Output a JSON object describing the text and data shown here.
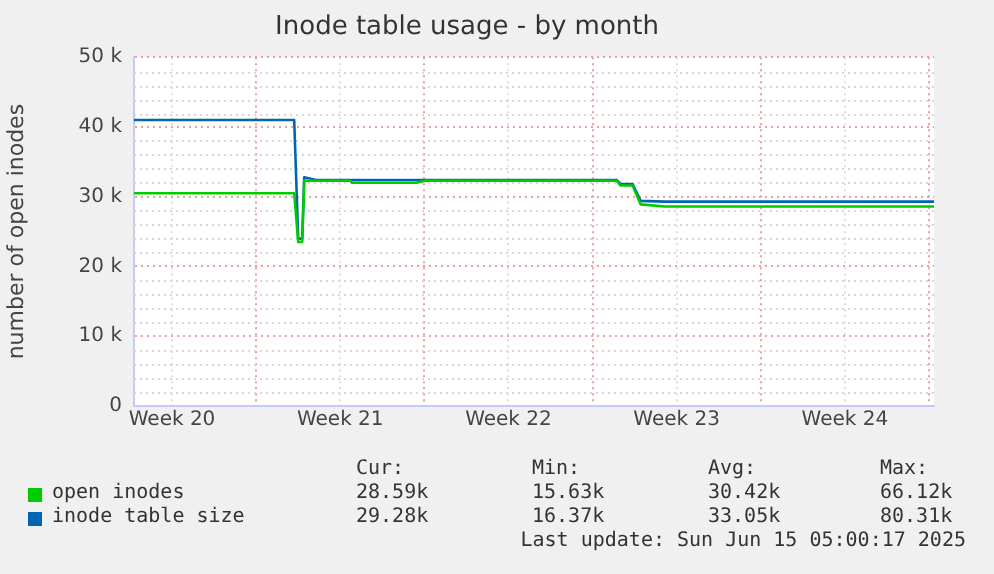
{
  "chart_data": {
    "type": "line",
    "title": "Inode table usage - by month",
    "ylabel": "number of open inodes",
    "series": [
      {
        "name": "open inodes",
        "color": "#00cc00",
        "x": [
          "2025-05-12T22:00",
          "2025-05-19T14:00",
          "2025-05-19T18:00",
          "2025-05-19T22:00",
          "2025-05-20T00:00",
          "2025-05-21T22:00",
          "2025-05-22T00:00",
          "2025-05-24T16:00",
          "2025-05-25T00:00",
          "2025-06-02T00:00",
          "2025-06-02T04:00",
          "2025-06-02T16:00",
          "2025-06-03T00:00",
          "2025-06-04T00:00",
          "2025-06-15T05:00"
        ],
        "values": [
          30500,
          30500,
          23500,
          23500,
          32300,
          32300,
          32000,
          32000,
          32300,
          32300,
          31600,
          31600,
          28900,
          28600,
          28600
        ]
      },
      {
        "name": "inode table size",
        "color": "#0066b3",
        "x": [
          "2025-05-12T22:00",
          "2025-05-19T14:00",
          "2025-05-19T18:00",
          "2025-05-19T22:00",
          "2025-05-20T00:00",
          "2025-05-20T12:00",
          "2025-06-02T00:00",
          "2025-06-02T04:00",
          "2025-06-02T16:00",
          "2025-06-03T00:00",
          "2025-06-04T00:00",
          "2025-06-15T05:00"
        ],
        "values": [
          41000,
          41000,
          24000,
          24000,
          32800,
          32400,
          32400,
          31800,
          31800,
          29400,
          29300,
          29300
        ]
      }
    ],
    "xlim": [
      "2025-05-12T22:00",
      "2025-06-15T05:00"
    ],
    "xticks": [
      {
        "value": "2025-05-14T12:00",
        "label": "Week 20"
      },
      {
        "value": "2025-05-18T00:00",
        "label": null
      },
      {
        "value": "2025-05-21T12:00",
        "label": "Week 21"
      },
      {
        "value": "2025-05-25T00:00",
        "label": null
      },
      {
        "value": "2025-05-28T12:00",
        "label": "Week 22"
      },
      {
        "value": "2025-06-01T00:00",
        "label": null
      },
      {
        "value": "2025-06-04T12:00",
        "label": "Week 23"
      },
      {
        "value": "2025-06-08T00:00",
        "label": null
      },
      {
        "value": "2025-06-11T12:00",
        "label": "Week 24"
      },
      {
        "value": "2025-06-15T00:00",
        "label": null
      }
    ],
    "ylim": [
      0,
      50000
    ],
    "yticks": [
      0,
      {
        "value": 10000,
        "label": "10 k"
      },
      {
        "value": 20000,
        "label": "20 k"
      },
      {
        "value": 30000,
        "label": "30 k"
      },
      {
        "value": 40000,
        "label": "40 k"
      },
      {
        "value": 50000,
        "label": "50 k"
      }
    ],
    "grid": true,
    "legend": "bottom left",
    "marker": "none",
    "line_style": "solid",
    "annotations": [
      "Cur:",
      "Min:",
      "Avg:",
      "Max:",
      "28.59k",
      "15.63k",
      "30.42k",
      "66.12k",
      "29.28k",
      "16.37k",
      "33.05k",
      "80.31k",
      "Last update: Sun Jun 15 05:00:17 2025"
    ]
  }
}
